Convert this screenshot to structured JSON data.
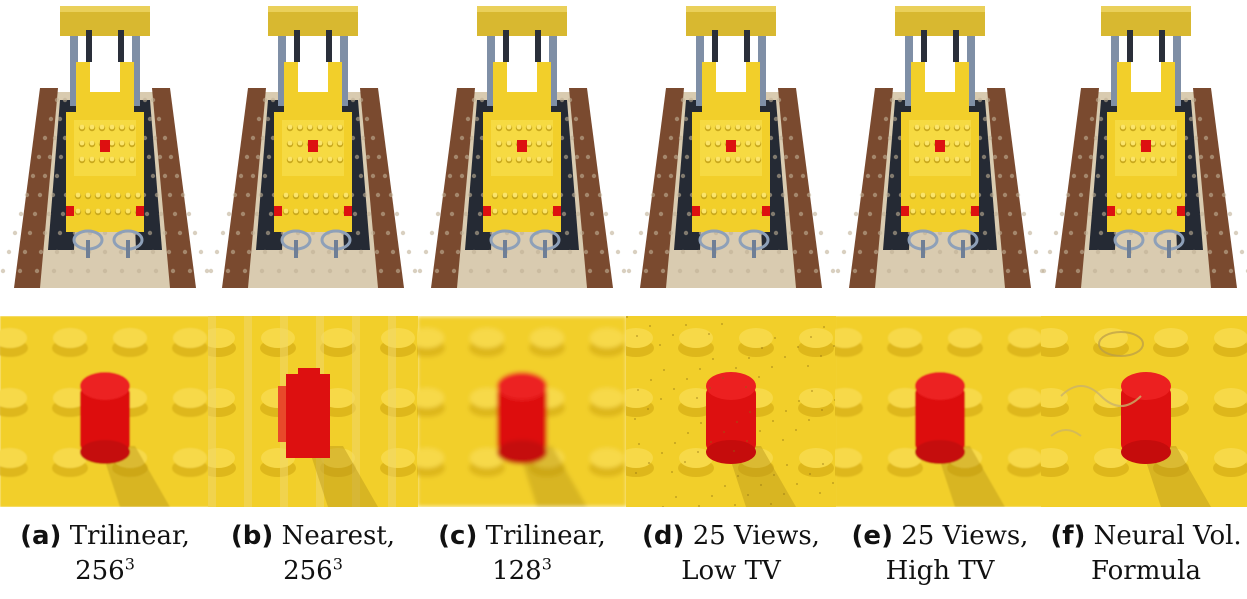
{
  "colors": {
    "lego_yellow": "#f2cf2a",
    "lego_red": "#dd1010",
    "baseplate_tan": "#d9cbb0",
    "track_brown": "#7a4a2f",
    "tread_dark": "#252a34",
    "steel_gray": "#7f8fa6"
  },
  "panels": [
    {
      "tag": "(a)",
      "label": "Trilinear,",
      "res": "256",
      "sup": "3",
      "style": "smooth"
    },
    {
      "tag": "(b)",
      "label": "Nearest,",
      "res": "256",
      "sup": "3",
      "style": "blocky"
    },
    {
      "tag": "(c)",
      "label": "Trilinear,",
      "res": "128",
      "sup": "3",
      "style": "blurry"
    },
    {
      "tag": "(d)",
      "label": "25 Views,",
      "line2": "Low TV",
      "style": "noisy"
    },
    {
      "tag": "(e)",
      "label": "25 Views,",
      "line2": "High TV",
      "style": "smooth"
    },
    {
      "tag": "(f)",
      "label": "Neural Vol.",
      "line2": "Formula",
      "style": "artifact"
    }
  ]
}
